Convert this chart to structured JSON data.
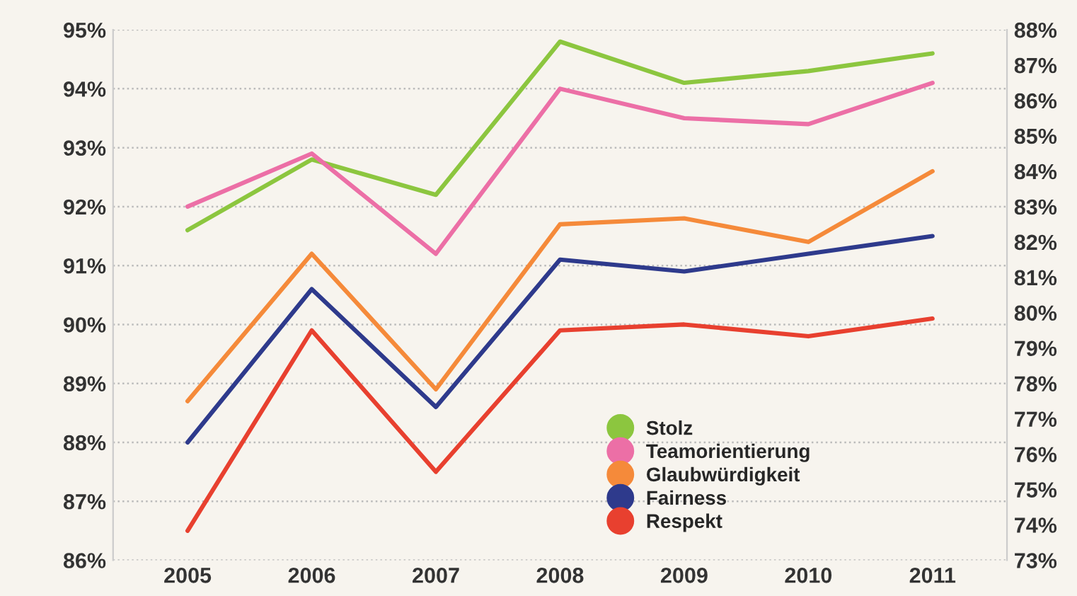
{
  "chart_data": {
    "type": "line",
    "categories": [
      "2005",
      "2006",
      "2007",
      "2008",
      "2009",
      "2010",
      "2011"
    ],
    "series": [
      {
        "name": "Stolz",
        "color": "#8cc63f",
        "values": [
          91.6,
          92.8,
          92.2,
          94.8,
          94.1,
          94.3,
          94.6
        ]
      },
      {
        "name": "Teamorientierung",
        "color": "#ec6fa6",
        "values": [
          92.0,
          92.9,
          91.2,
          94.0,
          93.5,
          93.4,
          94.1
        ]
      },
      {
        "name": "Glaubwürdigkeit",
        "color": "#f58a3a",
        "values": [
          88.7,
          91.2,
          88.9,
          91.7,
          91.8,
          91.4,
          92.6
        ]
      },
      {
        "name": "Fairness",
        "color": "#2e3a8c",
        "values": [
          88.0,
          90.6,
          88.6,
          91.1,
          90.9,
          91.2,
          91.5
        ]
      },
      {
        "name": "Respekt",
        "color": "#e8402f",
        "values": [
          86.5,
          89.9,
          87.5,
          89.9,
          90.0,
          89.8,
          90.1
        ]
      }
    ],
    "ylim": [
      86,
      95
    ],
    "yticks": [
      {
        "value": 86,
        "label": "86%"
      },
      {
        "value": 87,
        "label": "87%"
      },
      {
        "value": 88,
        "label": "88%"
      },
      {
        "value": 89,
        "label": "89%"
      },
      {
        "value": 90,
        "label": "90%"
      },
      {
        "value": 91,
        "label": "91%"
      },
      {
        "value": 92,
        "label": "92%"
      },
      {
        "value": 93,
        "label": "93%"
      },
      {
        "value": 94,
        "label": "94%"
      },
      {
        "value": 95,
        "label": "95%"
      }
    ],
    "y2lim": [
      73,
      88
    ],
    "y2ticks": [
      {
        "value": 73,
        "label": "73%"
      },
      {
        "value": 74,
        "label": "74%"
      },
      {
        "value": 75,
        "label": "75%"
      },
      {
        "value": 76,
        "label": "76%"
      },
      {
        "value": 77,
        "label": "77%"
      },
      {
        "value": 78,
        "label": "78%"
      },
      {
        "value": 79,
        "label": "79%"
      },
      {
        "value": 80,
        "label": "80%"
      },
      {
        "value": 81,
        "label": "81%"
      },
      {
        "value": 82,
        "label": "82%"
      },
      {
        "value": 83,
        "label": "83%"
      },
      {
        "value": 84,
        "label": "84%"
      },
      {
        "value": 85,
        "label": "85%"
      },
      {
        "value": 86,
        "label": "86%"
      },
      {
        "value": 87,
        "label": "87%"
      },
      {
        "value": 88,
        "label": "88%"
      }
    ],
    "grid": "y",
    "legend": "bottom right",
    "marker": "none",
    "line_style": "solid"
  }
}
